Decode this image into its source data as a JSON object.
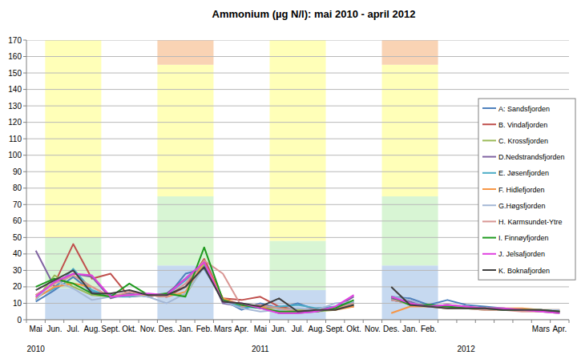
{
  "chart_data": {
    "type": "line",
    "title": "Ammonium (µg N/l): mai 2010 - april 2012",
    "categories": [
      "Mai",
      "Jun.",
      "Jul.",
      "Aug.",
      "Sept.",
      "Okt.",
      "Nov.",
      "Des.",
      "Jan.",
      "Feb.",
      "Mars",
      "Apr.",
      "Mai",
      "Jun.",
      "Jul.",
      "Aug.",
      "Sept.",
      "Okt.",
      "Nov.",
      "Des.",
      "Jan.",
      "Feb.",
      null,
      null,
      null,
      null,
      null,
      "Mars",
      "Apr."
    ],
    "x_groups": [
      {
        "label": "2010",
        "at": 0
      },
      {
        "label": "2011",
        "at": 12
      },
      {
        "label": "2012",
        "at": 23
      }
    ],
    "series": [
      {
        "name": "A: Sandsfjorden",
        "color": "#4f81bd",
        "values": [
          11,
          18,
          26,
          17,
          15,
          15,
          15,
          14,
          28,
          31,
          12,
          6,
          10,
          7,
          10,
          6,
          8,
          11,
          null,
          14,
          13,
          9,
          12,
          9,
          8,
          7,
          6,
          6,
          5
        ]
      },
      {
        "name": "B. Vindafjorden",
        "color": "#c0504d",
        "values": [
          15,
          22,
          46,
          25,
          28,
          14,
          15,
          14,
          20,
          37,
          13,
          12,
          14,
          8,
          6,
          7,
          7,
          8,
          null,
          12,
          10,
          9,
          8,
          7,
          7,
          6,
          6,
          5,
          5
        ]
      },
      {
        "name": "C. Krossfjorden",
        "color": "#9bbb59",
        "values": [
          12,
          27,
          20,
          15,
          14,
          16,
          14,
          16,
          15,
          33,
          12,
          9,
          8,
          7,
          6,
          5,
          6,
          9,
          null,
          13,
          9,
          8,
          7,
          7,
          6,
          6,
          6,
          5,
          5
        ]
      },
      {
        "name": "D.Nedstrandsfjorden",
        "color": "#8064a2",
        "values": [
          42,
          20,
          28,
          26,
          13,
          16,
          14,
          16,
          25,
          35,
          10,
          8,
          8,
          4,
          4,
          5,
          7,
          14,
          null,
          13,
          11,
          8,
          9,
          7,
          7,
          6,
          6,
          5,
          5
        ]
      },
      {
        "name": "E. Jøsenfjorden",
        "color": "#4bacc6",
        "values": [
          14,
          19,
          31,
          18,
          14,
          14,
          15,
          15,
          24,
          34,
          11,
          8,
          7,
          8,
          9,
          7,
          8,
          10,
          null,
          12,
          10,
          9,
          8,
          7,
          7,
          6,
          6,
          5,
          4
        ]
      },
      {
        "name": "F. Hidlefjorden",
        "color": "#f79646",
        "values": [
          13,
          20,
          22,
          20,
          14,
          15,
          15,
          14,
          17,
          35,
          13,
          9,
          8,
          5,
          5,
          6,
          6,
          8,
          null,
          4,
          8,
          8,
          9,
          8,
          7,
          7,
          7,
          6,
          6
        ]
      },
      {
        "name": "G.Høgsfjorden",
        "color": "#a5b8d6",
        "values": [
          12,
          24,
          19,
          12,
          14,
          15,
          14,
          10,
          16,
          32,
          11,
          7,
          5,
          6,
          7,
          6,
          10,
          11,
          null,
          14,
          12,
          8,
          9,
          8,
          7,
          7,
          6,
          6,
          6
        ]
      },
      {
        "name": "H. Karmsundet-Ytre",
        "color": "#d99694",
        "values": [
          15,
          22,
          27,
          20,
          14,
          17,
          15,
          14,
          22,
          36,
          28,
          8,
          9,
          7,
          5,
          5,
          7,
          10,
          null,
          12,
          10,
          8,
          7,
          7,
          6,
          6,
          5,
          5,
          4
        ]
      },
      {
        "name": "I. Finnøyfjorden",
        "color": "#1f9a1f",
        "values": [
          20,
          25,
          22,
          16,
          14,
          22,
          15,
          16,
          14,
          44,
          12,
          9,
          7,
          5,
          5,
          5,
          7,
          12,
          null,
          14,
          9,
          9,
          8,
          7,
          7,
          6,
          6,
          6,
          5
        ]
      },
      {
        "name": "J. Jelsafjorden",
        "color": "#e040e0",
        "values": [
          14,
          23,
          28,
          27,
          14,
          15,
          16,
          15,
          25,
          35,
          11,
          10,
          7,
          4,
          4,
          5,
          8,
          15,
          null,
          14,
          10,
          8,
          9,
          8,
          7,
          7,
          6,
          5,
          4
        ]
      },
      {
        "name": "K. Boknafjorden",
        "color": "#404040",
        "values": [
          18,
          24,
          30,
          16,
          16,
          18,
          15,
          15,
          20,
          32,
          11,
          10,
          8,
          13,
          5,
          6,
          6,
          9,
          null,
          20,
          9,
          8,
          7,
          7,
          7,
          6,
          6,
          6,
          5
        ]
      }
    ],
    "bands": [
      {
        "from": 1,
        "to": 3,
        "y0": 0,
        "y1": 19,
        "color": "#c6d9f0"
      },
      {
        "from": 1,
        "to": 3,
        "y0": 19,
        "y1": 50,
        "color": "#d8f5d4"
      },
      {
        "from": 1,
        "to": 3,
        "y0": 50,
        "y1": 170,
        "color": "#ffffb8"
      },
      {
        "from": 7,
        "to": 9,
        "y0": 0,
        "y1": 33,
        "color": "#c6d9f0"
      },
      {
        "from": 7,
        "to": 9,
        "y0": 33,
        "y1": 75,
        "color": "#d8f5d4"
      },
      {
        "from": 7,
        "to": 9,
        "y0": 75,
        "y1": 155,
        "color": "#ffffb8"
      },
      {
        "from": 7,
        "to": 9,
        "y0": 155,
        "y1": 170,
        "color": "#f9d3b4"
      },
      {
        "from": 13,
        "to": 15,
        "y0": 0,
        "y1": 18,
        "color": "#c6d9f0"
      },
      {
        "from": 13,
        "to": 15,
        "y0": 18,
        "y1": 48,
        "color": "#d8f5d4"
      },
      {
        "from": 13,
        "to": 15,
        "y0": 48,
        "y1": 170,
        "color": "#ffffb8"
      },
      {
        "from": 19,
        "to": 21,
        "y0": 0,
        "y1": 33,
        "color": "#c6d9f0"
      },
      {
        "from": 19,
        "to": 21,
        "y0": 33,
        "y1": 75,
        "color": "#d8f5d4"
      },
      {
        "from": 19,
        "to": 21,
        "y0": 75,
        "y1": 155,
        "color": "#ffffb8"
      },
      {
        "from": 19,
        "to": 21,
        "y0": 155,
        "y1": 170,
        "color": "#f9d3b4"
      }
    ],
    "ylim": [
      0,
      170
    ],
    "yticks": [
      0,
      10,
      20,
      30,
      40,
      50,
      60,
      70,
      80,
      90,
      100,
      110,
      120,
      130,
      140,
      150,
      160,
      170
    ],
    "grid": true,
    "legend": "right"
  }
}
